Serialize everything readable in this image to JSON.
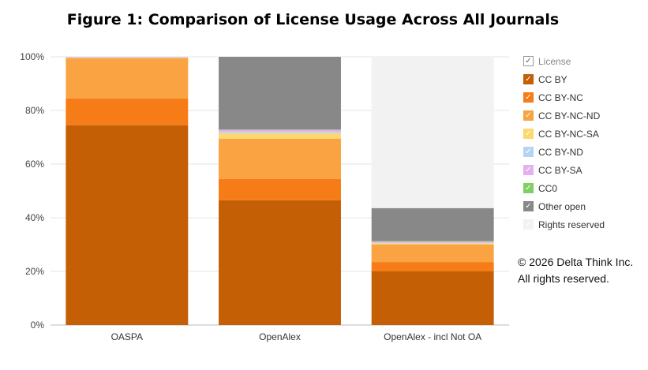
{
  "chart_data": {
    "type": "bar",
    "stacked": true,
    "title": "Figure 1: Comparison of License Usage Across All Journals",
    "categories": [
      "OASPA",
      "OpenAlex",
      "OpenAlex - incl Not OA"
    ],
    "ylim": [
      0,
      100
    ],
    "yticks": [
      "0%",
      "20%",
      "40%",
      "60%",
      "80%",
      "100%"
    ],
    "xlabel": "",
    "ylabel": "",
    "legend_title": "License",
    "legend_position": "right",
    "series": [
      {
        "name": "CC BY",
        "color": "#c45f06",
        "values": [
          74.5,
          46.5,
          20.0
        ]
      },
      {
        "name": "CC BY-NC",
        "color": "#f57c16",
        "values": [
          10.0,
          8.0,
          3.5
        ]
      },
      {
        "name": "CC BY-NC-ND",
        "color": "#f9a343",
        "values": [
          15.0,
          15.0,
          6.5
        ]
      },
      {
        "name": "CC BY-NC-SA",
        "color": "#fbd870",
        "values": [
          0.2,
          2.0,
          0.5
        ]
      },
      {
        "name": "CC BY-ND",
        "color": "#b5d4f4",
        "values": [
          0.1,
          0.5,
          0.2
        ]
      },
      {
        "name": "CC BY-SA",
        "color": "#e5b0ee",
        "values": [
          0.2,
          0.8,
          0.5
        ]
      },
      {
        "name": "CC0",
        "color": "#7fcf62",
        "values": [
          0.0,
          0.1,
          0.1
        ]
      },
      {
        "name": "Other open",
        "color": "#888888",
        "values": [
          0.0,
          27.1,
          12.3
        ]
      },
      {
        "name": "Rights reserved",
        "color": "#f2f2f2",
        "values": [
          0.0,
          0.0,
          56.4
        ]
      }
    ]
  },
  "copyright": "© 2026 Delta Think Inc. All rights reserved."
}
